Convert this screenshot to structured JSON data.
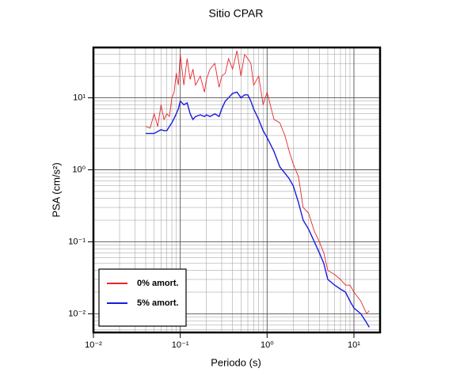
{
  "chart_data": {
    "type": "line",
    "title": "Sitio CPAR",
    "x_label": "Periodo (s)",
    "y_label": "PSA (cm/s²)",
    "x_log": true,
    "y_log": true,
    "grid": true,
    "minor_grid": true,
    "legend_position": "lower left",
    "xlim": [
      0.01,
      20
    ],
    "ylim": [
      0.0055,
      50
    ],
    "xticks": [
      {
        "value": 0.01,
        "label": "10⁻²"
      },
      {
        "value": 0.1,
        "label": "10⁻¹"
      },
      {
        "value": 1,
        "label": "10⁰"
      },
      {
        "value": 10,
        "label": "10¹"
      }
    ],
    "yticks": [
      {
        "value": 0.01,
        "label": "10⁻²"
      },
      {
        "value": 0.1,
        "label": "10⁻¹"
      },
      {
        "value": 1,
        "label": "10⁰"
      },
      {
        "value": 10,
        "label": "10¹"
      }
    ],
    "x": [
      0.04,
      0.045,
      0.05,
      0.055,
      0.06,
      0.065,
      0.07,
      0.075,
      0.08,
      0.085,
      0.09,
      0.095,
      0.1,
      0.11,
      0.12,
      0.13,
      0.14,
      0.15,
      0.17,
      0.19,
      0.2,
      0.22,
      0.25,
      0.28,
      0.3,
      0.33,
      0.36,
      0.4,
      0.45,
      0.5,
      0.55,
      0.6,
      0.65,
      0.7,
      0.8,
      0.9,
      1.0,
      1.2,
      1.4,
      1.6,
      1.8,
      2.0,
      2.3,
      2.6,
      3.0,
      3.5,
      4.0,
      4.5,
      5,
      6,
      7,
      8,
      9,
      10,
      12,
      14,
      15
    ],
    "series": [
      {
        "name": "0% amort.",
        "color": "#e8262a",
        "values": [
          4,
          3.8,
          6,
          4,
          8,
          5,
          6,
          5.5,
          10,
          12,
          22,
          15,
          40,
          15,
          35,
          18,
          25,
          15,
          20,
          12,
          18,
          25,
          30,
          14,
          20,
          22,
          35,
          25,
          45,
          20,
          40,
          35,
          30,
          15,
          20,
          8,
          12,
          5,
          4.5,
          3,
          1.8,
          1.2,
          0.8,
          0.3,
          0.25,
          0.14,
          0.1,
          0.07,
          0.04,
          0.035,
          0.03,
          0.025,
          0.025,
          0.02,
          0.015,
          0.01,
          0.011
        ]
      },
      {
        "name": "5% amort.",
        "color": "#1a1adf",
        "values": [
          3.2,
          3.2,
          3.2,
          3.4,
          3.6,
          3.5,
          3.5,
          4,
          4.5,
          5.2,
          6,
          7,
          9,
          8,
          8.5,
          6,
          5,
          5.5,
          5.8,
          5.5,
          5.8,
          5.5,
          6,
          5.5,
          7,
          9,
          10,
          11.5,
          12,
          10,
          11,
          11,
          9,
          7,
          5,
          3.5,
          2.8,
          1.8,
          1.1,
          0.9,
          0.75,
          0.6,
          0.35,
          0.2,
          0.15,
          0.1,
          0.07,
          0.05,
          0.03,
          0.025,
          0.022,
          0.02,
          0.015,
          0.012,
          0.01,
          0.0075,
          0.0065
        ]
      }
    ]
  }
}
